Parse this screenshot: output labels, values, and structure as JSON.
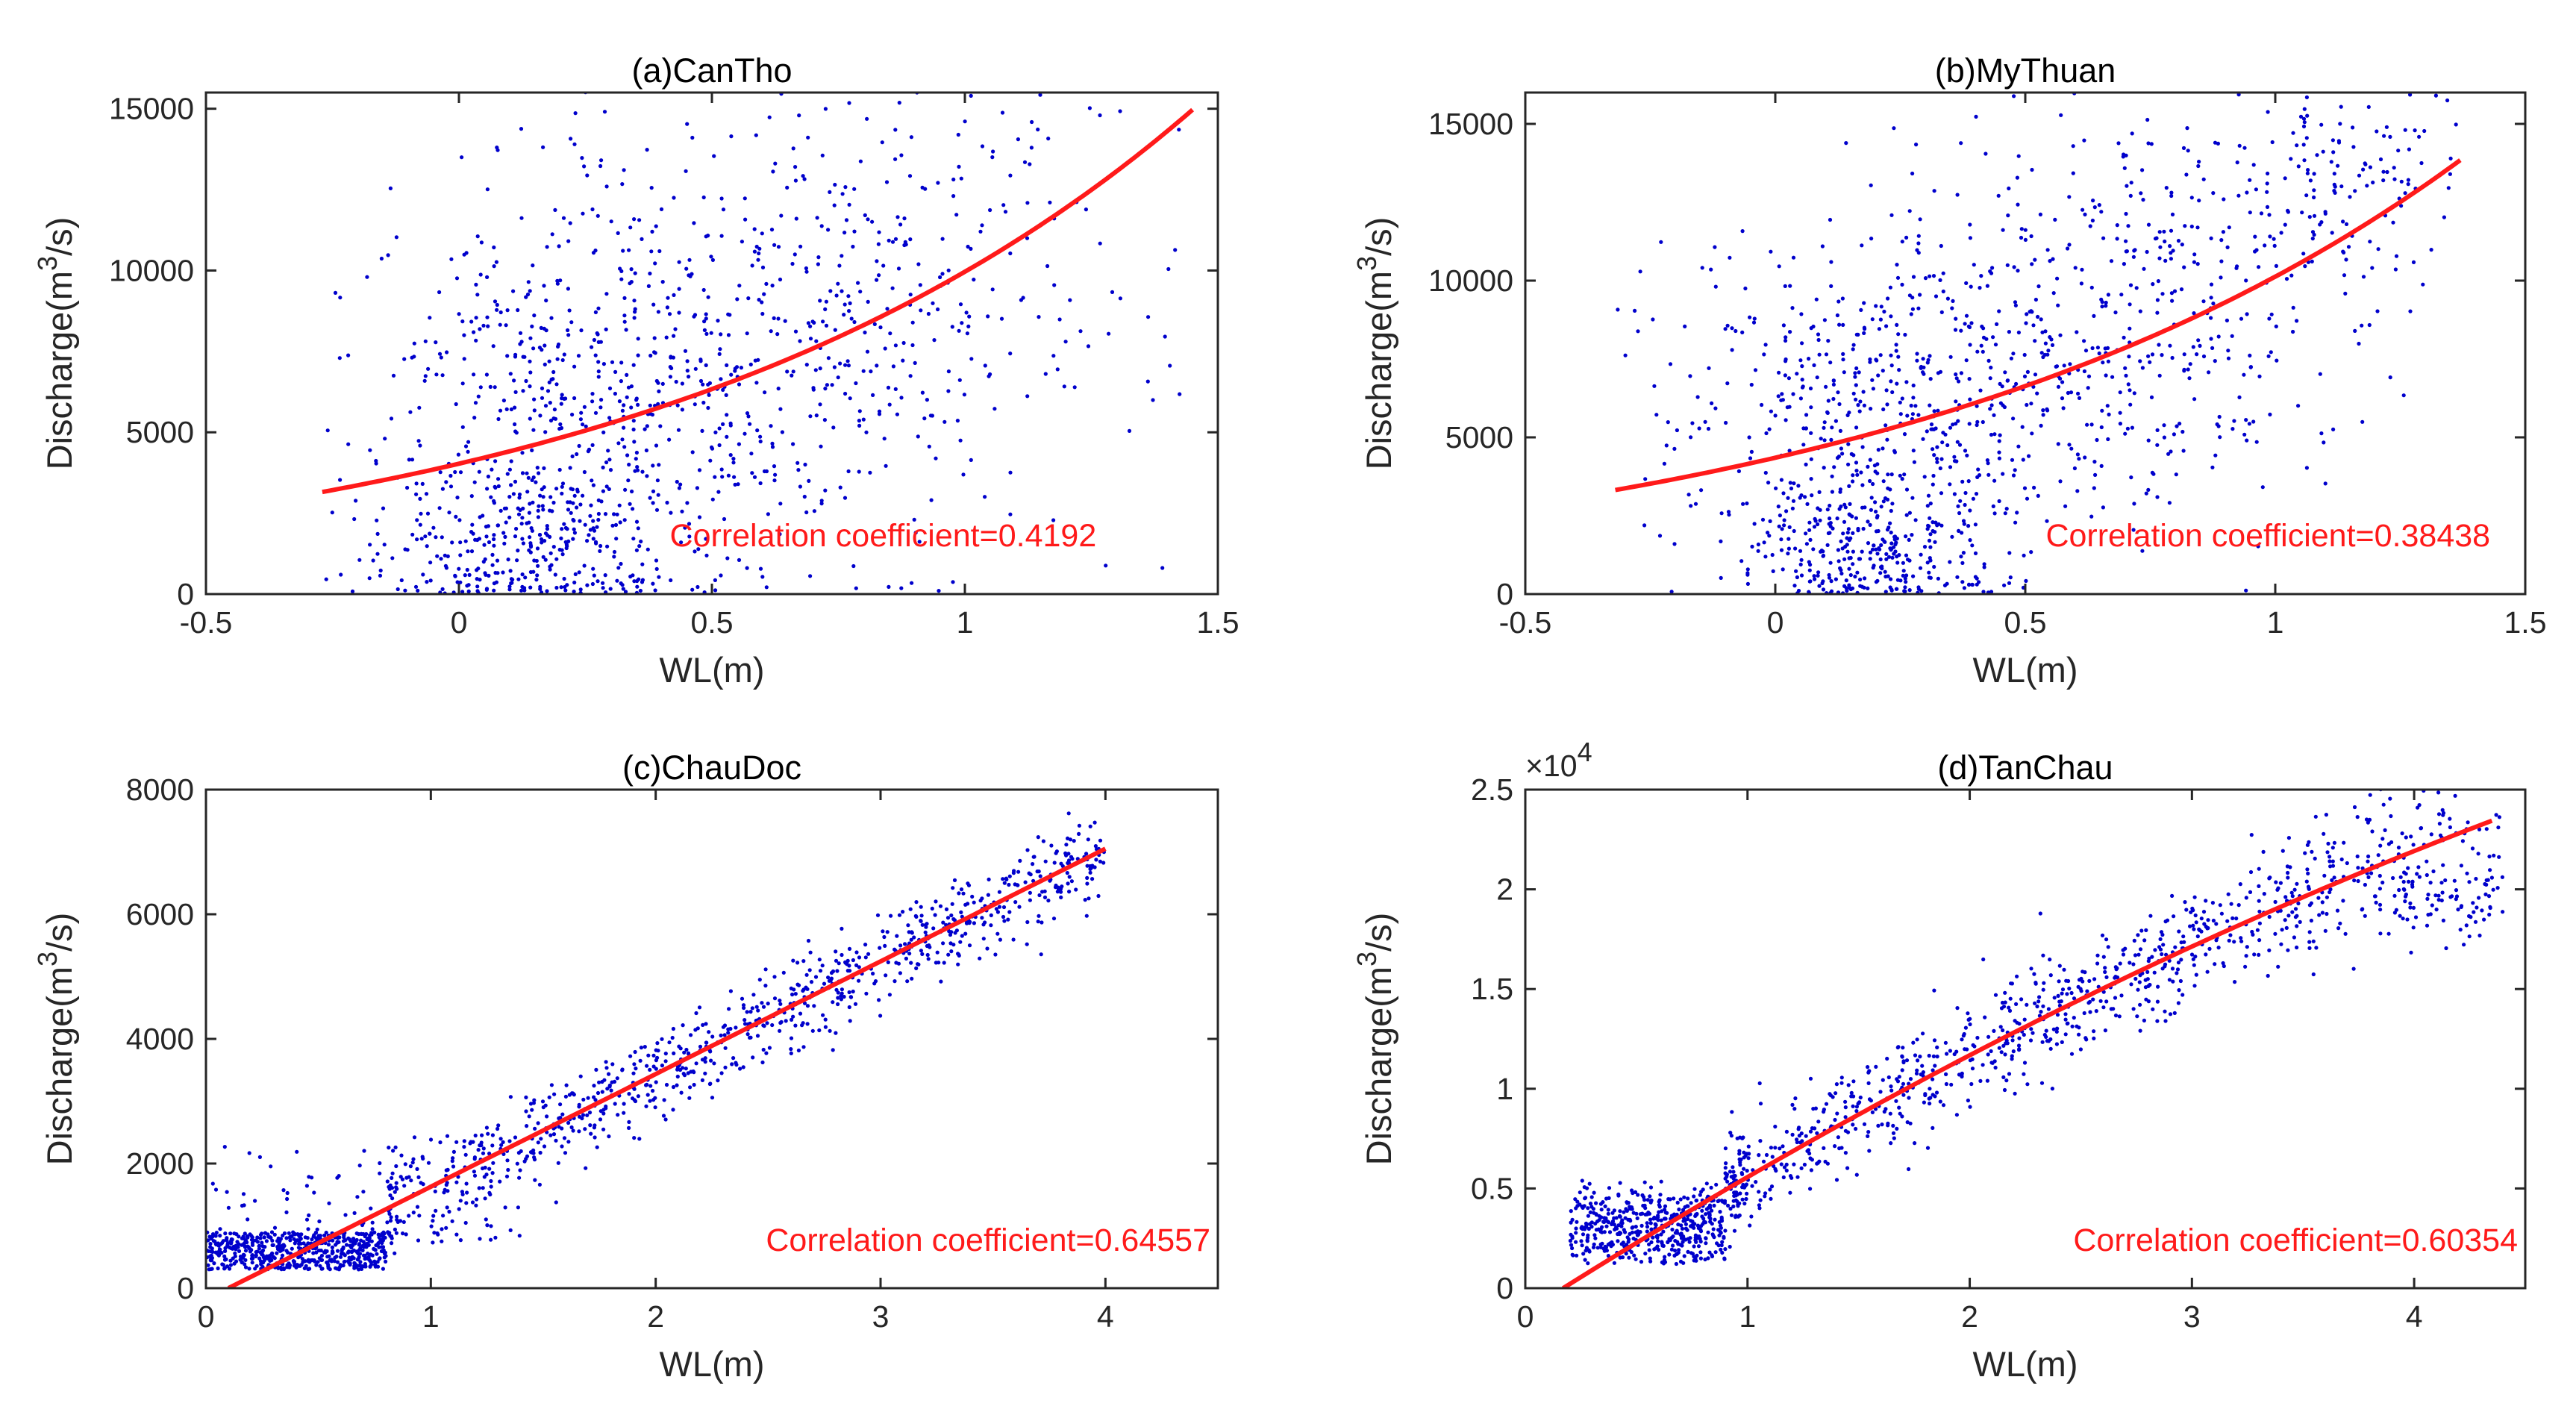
{
  "colors": {
    "points": "#0000cc",
    "fit": "#ff1a1a",
    "annotation": "#ff1a1a",
    "axis": "#262626"
  },
  "chart_data": [
    {
      "id": "a",
      "type": "scatter",
      "title": "(a)CanTho",
      "xlabel": "WL(m)",
      "ylabel_prefix": "Discharge(m",
      "ylabel_sup": "3",
      "ylabel_suffix": "/s)",
      "xlim": [
        -0.5,
        1.5
      ],
      "ylim": [
        0,
        15500
      ],
      "xticks": [
        -0.5,
        0,
        0.5,
        1,
        1.5
      ],
      "xtick_labels": [
        "-0.5",
        "0",
        "0.5",
        "1",
        "1.5"
      ],
      "yticks": [
        0,
        5000,
        10000,
        15000
      ],
      "ytick_labels": [
        "0",
        "5000",
        "10000",
        "15000"
      ],
      "y_multiplier": "",
      "y_multiplier_exp": "",
      "annotation": "Correlation coefficient=0.4192",
      "fit": {
        "kind": "exponential",
        "x": [
          -0.27,
          1.45
        ],
        "a": 4030,
        "b": 0.905
      },
      "scatter_description": {
        "count": 1300,
        "x_range": [
          -0.27,
          1.45
        ],
        "clusters": [
          {
            "cx": 0.15,
            "cy": 1500,
            "sx": 0.15,
            "sy": 1400,
            "n": 320
          },
          {
            "cx": 0.25,
            "cy": 6000,
            "sx": 0.22,
            "sy": 3000,
            "n": 480
          },
          {
            "cx": 0.65,
            "cy": 8500,
            "sx": 0.28,
            "sy": 3800,
            "n": 420
          },
          {
            "cx": 1.1,
            "cy": 11000,
            "sx": 0.2,
            "sy": 3000,
            "n": 80
          }
        ]
      }
    },
    {
      "id": "b",
      "type": "scatter",
      "title": "(b)MyThuan",
      "xlabel": "WL(m)",
      "ylabel_prefix": "Discharge(m",
      "ylabel_sup": "3",
      "ylabel_suffix": "/s)",
      "xlim": [
        -0.5,
        1.5
      ],
      "ylim": [
        0,
        16000
      ],
      "xticks": [
        -0.5,
        0,
        0.5,
        1,
        1.5
      ],
      "xtick_labels": [
        "-0.5",
        "0",
        "0.5",
        "1",
        "1.5"
      ],
      "yticks": [
        0,
        5000,
        10000,
        15000
      ],
      "ytick_labels": [
        "0",
        "5000",
        "10000",
        "15000"
      ],
      "y_multiplier": "",
      "y_multiplier_exp": "",
      "annotation": "Correlation coefficient=0.38438",
      "fit": {
        "kind": "exponential",
        "x": [
          -0.32,
          1.37
        ],
        "a": 4350,
        "b": 0.845
      },
      "scatter_description": {
        "count": 1400,
        "x_range": [
          -0.32,
          1.37
        ],
        "clusters": [
          {
            "cx": 0.18,
            "cy": 1600,
            "sx": 0.13,
            "sy": 1300,
            "n": 350
          },
          {
            "cx": 0.2,
            "cy": 6500,
            "sx": 0.22,
            "sy": 2500,
            "n": 480
          },
          {
            "cx": 0.7,
            "cy": 9000,
            "sx": 0.25,
            "sy": 3500,
            "n": 420
          },
          {
            "cx": 1.1,
            "cy": 13500,
            "sx": 0.15,
            "sy": 1800,
            "n": 150
          }
        ]
      }
    },
    {
      "id": "c",
      "type": "scatter",
      "title": "(c)ChauDoc",
      "xlabel": "WL(m)",
      "ylabel_prefix": "Discharge(m",
      "ylabel_sup": "3",
      "ylabel_suffix": "/s)",
      "xlim": [
        0,
        4.5
      ],
      "ylim": [
        0,
        8000
      ],
      "xticks": [
        0,
        1,
        2,
        3,
        4
      ],
      "xtick_labels": [
        "0",
        "1",
        "2",
        "3",
        "4"
      ],
      "yticks": [
        0,
        2000,
        4000,
        6000,
        8000
      ],
      "ytick_labels": [
        "0",
        "2000",
        "4000",
        "6000",
        "8000"
      ],
      "y_multiplier": "",
      "y_multiplier_exp": "",
      "annotation": "Correlation coefficient=0.64557",
      "fit": {
        "kind": "linear",
        "x": [
          0.1,
          4.0
        ],
        "slope": 1808,
        "intercept": -180
      },
      "scatter_description": {
        "count": 1500,
        "x_range": [
          0,
          4.0
        ],
        "band_halfwidth": 380
      }
    },
    {
      "id": "d",
      "type": "scatter",
      "title": "(d)TanChau",
      "xlabel": "WL(m)",
      "ylabel_prefix": "Discharge(m",
      "ylabel_sup": "3",
      "ylabel_suffix": "/s)",
      "xlim": [
        0,
        4.5
      ],
      "ylim": [
        0,
        25000
      ],
      "xticks": [
        0,
        1,
        2,
        3,
        4
      ],
      "xtick_labels": [
        "0",
        "1",
        "2",
        "3",
        "4"
      ],
      "yticks": [
        0,
        5000,
        10000,
        15000,
        20000,
        25000
      ],
      "ytick_labels": [
        "0",
        "0.5",
        "1",
        "1.5",
        "2",
        "2.5"
      ],
      "y_multiplier": "×10",
      "y_multiplier_exp": "4",
      "annotation": "Correlation coefficient=0.60354",
      "fit": {
        "kind": "quadratic",
        "x": [
          0.17,
          4.35
        ],
        "a": -3600,
        "b": 9100,
        "c": -650
      },
      "scatter_description": {
        "count": 1500,
        "x_range": [
          0,
          4.4
        ],
        "band_halfwidth": 1500
      }
    }
  ]
}
